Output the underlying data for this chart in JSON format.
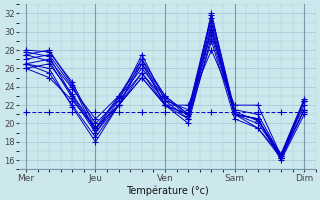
{
  "title": "Température (°c)",
  "bg_color": "#cce8ec",
  "line_color": "#0000cc",
  "grid_color": "#aac8d8",
  "ylim": [
    15,
    33
  ],
  "yticks": [
    16,
    18,
    20,
    22,
    24,
    26,
    28,
    30,
    32
  ],
  "day_labels": [
    "Mer",
    "Jeu",
    "Ven",
    "Sam",
    "Dim"
  ],
  "series": [
    {
      "x": [
        0,
        1,
        2,
        3,
        4,
        5,
        6,
        7,
        8,
        9,
        10,
        11,
        12
      ],
      "y": [
        27.5,
        28.0,
        24.2,
        19.0,
        22.0,
        26.5,
        22.0,
        21.0,
        32.0,
        21.0,
        20.5,
        16.0,
        21.0
      ]
    },
    {
      "x": [
        0,
        1,
        2,
        3,
        4,
        5,
        6,
        7,
        8,
        9,
        10,
        11,
        12
      ],
      "y": [
        28.0,
        27.8,
        24.5,
        19.5,
        22.0,
        27.0,
        22.0,
        21.0,
        31.5,
        21.0,
        20.5,
        16.2,
        21.5
      ]
    },
    {
      "x": [
        0,
        1,
        2,
        3,
        4,
        5,
        6,
        7,
        8,
        9,
        10,
        11,
        12
      ],
      "y": [
        27.0,
        27.5,
        24.0,
        20.0,
        22.5,
        27.5,
        22.5,
        21.5,
        31.8,
        21.5,
        21.0,
        16.5,
        21.5
      ]
    },
    {
      "x": [
        0,
        1,
        2,
        3,
        4,
        5,
        6,
        7,
        8,
        9,
        10,
        11,
        12
      ],
      "y": [
        26.5,
        27.0,
        23.8,
        20.5,
        23.0,
        27.0,
        23.0,
        21.0,
        31.0,
        21.0,
        20.5,
        16.5,
        22.0
      ]
    },
    {
      "x": [
        0,
        1,
        2,
        3,
        4,
        5,
        6,
        7,
        8,
        9,
        10,
        11,
        12
      ],
      "y": [
        26.0,
        26.5,
        23.2,
        19.5,
        23.0,
        26.5,
        23.0,
        21.0,
        30.5,
        21.0,
        20.5,
        16.2,
        22.5
      ]
    },
    {
      "x": [
        0,
        1,
        2,
        3,
        4,
        5,
        6,
        7,
        8,
        9,
        10,
        11,
        12
      ],
      "y": [
        27.5,
        26.8,
        22.8,
        19.0,
        22.5,
        25.5,
        22.5,
        20.5,
        30.0,
        21.0,
        20.0,
        16.5,
        22.5
      ]
    },
    {
      "x": [
        0,
        1,
        2,
        3,
        4,
        5,
        6,
        7,
        8,
        9,
        10,
        11,
        12
      ],
      "y": [
        27.8,
        27.3,
        23.0,
        19.3,
        22.8,
        26.0,
        22.8,
        20.8,
        30.3,
        21.3,
        20.3,
        16.7,
        22.7
      ]
    },
    {
      "x": [
        0,
        1,
        2,
        3,
        4,
        5,
        6,
        7,
        8,
        9,
        10,
        11,
        12
      ],
      "y": [
        26.5,
        26.0,
        21.8,
        18.0,
        22.0,
        25.0,
        22.0,
        20.0,
        29.5,
        21.0,
        19.5,
        16.5,
        22.5
      ]
    },
    {
      "x": [
        0,
        1,
        2,
        3,
        4,
        5,
        6,
        7,
        8,
        9,
        10,
        11,
        12
      ],
      "y": [
        26.5,
        25.5,
        22.0,
        18.5,
        22.0,
        25.5,
        22.0,
        20.5,
        29.0,
        20.5,
        19.5,
        16.2,
        21.5
      ]
    },
    {
      "x": [
        0,
        1,
        2,
        3,
        4,
        5,
        6,
        7,
        8,
        9,
        10,
        11,
        12
      ],
      "y": [
        26.0,
        25.0,
        22.5,
        19.5,
        22.0,
        25.0,
        22.0,
        22.0,
        28.0,
        22.0,
        22.0,
        16.5,
        22.5
      ]
    }
  ],
  "dashed_series": {
    "x": [
      0,
      1,
      2,
      3,
      4,
      5,
      6,
      7,
      8,
      9,
      10,
      11,
      12
    ],
    "y": [
      21.3,
      21.3,
      21.3,
      21.3,
      21.3,
      21.3,
      21.3,
      21.3,
      21.3,
      21.3,
      21.3,
      21.3,
      21.3
    ]
  }
}
